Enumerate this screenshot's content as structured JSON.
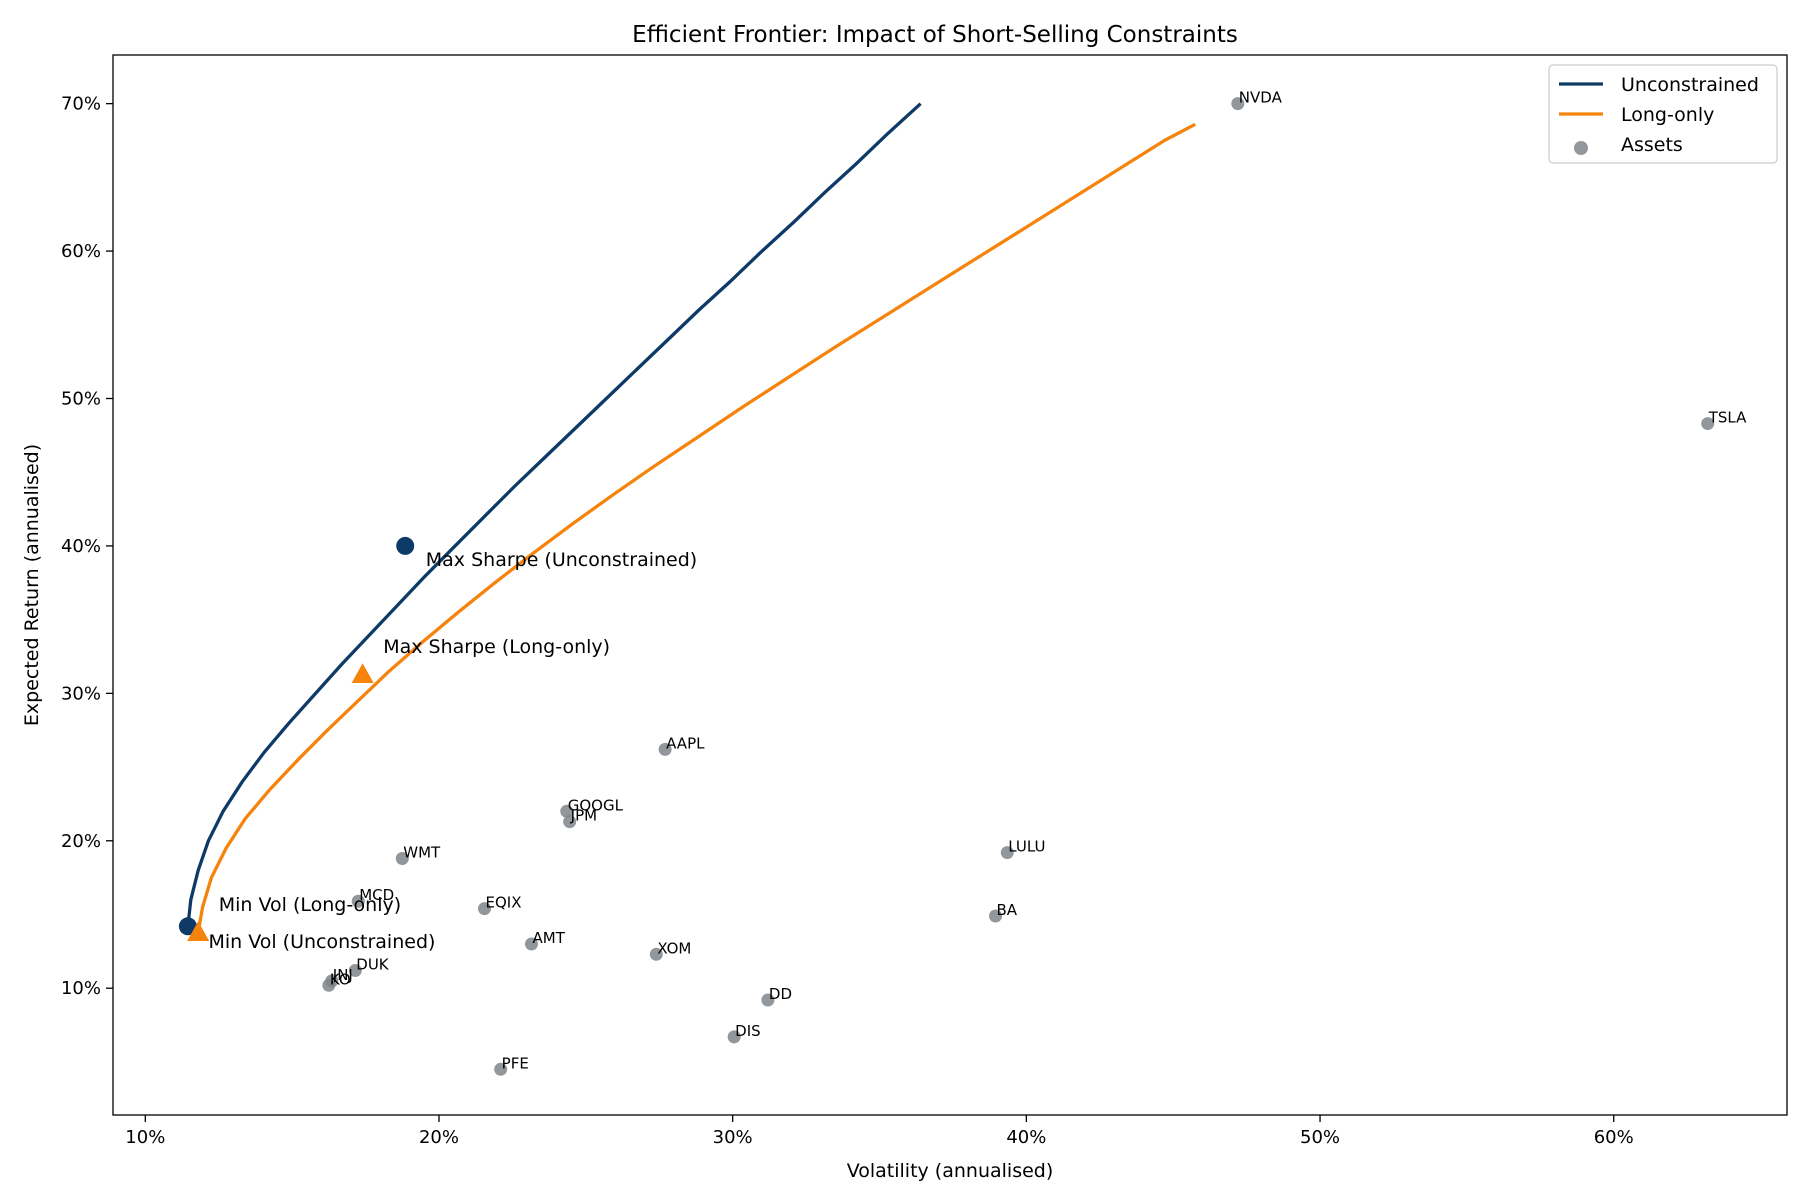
{
  "chart_data": {
    "type": "scatter",
    "title": "Efficient Frontier: Impact of Short-Selling Constraints",
    "xlabel": "Volatility (annualised)",
    "ylabel": "Expected Return (annualised)",
    "xlim": [
      0.089,
      0.659
    ],
    "ylim": [
      0.014,
      0.733
    ],
    "x_ticks": [
      0.1,
      0.2,
      0.3,
      0.4,
      0.5,
      0.6
    ],
    "x_tick_labels": [
      "10%",
      "20%",
      "30%",
      "40%",
      "50%",
      "60%"
    ],
    "y_ticks": [
      0.1,
      0.2,
      0.3,
      0.4,
      0.5,
      0.6,
      0.7
    ],
    "y_tick_labels": [
      "10%",
      "20%",
      "30%",
      "40%",
      "50%",
      "60%",
      "70%"
    ],
    "grid": false,
    "legend_position": "top-right",
    "legend": [
      {
        "label": "Unconstrained",
        "kind": "line",
        "color": "#0d3a66"
      },
      {
        "label": "Long-only",
        "kind": "line",
        "color": "#f5830c"
      },
      {
        "label": "Assets",
        "kind": "marker",
        "color": "#7f858b"
      }
    ],
    "series": [
      {
        "name": "Unconstrained",
        "color": "#0d3a66",
        "points": [
          [
            0.1145,
            0.142
          ],
          [
            0.1155,
            0.16
          ],
          [
            0.118,
            0.18
          ],
          [
            0.1215,
            0.2
          ],
          [
            0.1265,
            0.22
          ],
          [
            0.133,
            0.24
          ],
          [
            0.1405,
            0.26
          ],
          [
            0.149,
            0.28
          ],
          [
            0.158,
            0.3
          ],
          [
            0.167,
            0.32
          ],
          [
            0.1765,
            0.34
          ],
          [
            0.186,
            0.36
          ],
          [
            0.1955,
            0.38
          ],
          [
            0.2055,
            0.4
          ],
          [
            0.2155,
            0.42
          ],
          [
            0.2255,
            0.44
          ],
          [
            0.236,
            0.46
          ],
          [
            0.2465,
            0.48
          ],
          [
            0.257,
            0.5
          ],
          [
            0.2675,
            0.52
          ],
          [
            0.278,
            0.54
          ],
          [
            0.2885,
            0.56
          ],
          [
            0.2995,
            0.58
          ],
          [
            0.31,
            0.6
          ],
          [
            0.321,
            0.62
          ],
          [
            0.3315,
            0.64
          ],
          [
            0.3425,
            0.66
          ],
          [
            0.353,
            0.68
          ],
          [
            0.364,
            0.7
          ]
        ]
      },
      {
        "name": "Long-only",
        "color": "#f5830c",
        "points": [
          [
            0.118,
            0.138
          ],
          [
            0.1195,
            0.155
          ],
          [
            0.1225,
            0.175
          ],
          [
            0.1275,
            0.195
          ],
          [
            0.134,
            0.215
          ],
          [
            0.1425,
            0.235
          ],
          [
            0.152,
            0.255
          ],
          [
            0.162,
            0.275
          ],
          [
            0.1725,
            0.295
          ],
          [
            0.183,
            0.315
          ],
          [
            0.1945,
            0.335
          ],
          [
            0.2065,
            0.355
          ],
          [
            0.219,
            0.375
          ],
          [
            0.232,
            0.395
          ],
          [
            0.2455,
            0.415
          ],
          [
            0.2595,
            0.435
          ],
          [
            0.274,
            0.455
          ],
          [
            0.289,
            0.475
          ],
          [
            0.304,
            0.495
          ],
          [
            0.3195,
            0.515
          ],
          [
            0.335,
            0.535
          ],
          [
            0.351,
            0.555
          ],
          [
            0.367,
            0.575
          ],
          [
            0.383,
            0.595
          ],
          [
            0.399,
            0.615
          ],
          [
            0.415,
            0.635
          ],
          [
            0.431,
            0.655
          ],
          [
            0.447,
            0.675
          ],
          [
            0.4575,
            0.686
          ]
        ]
      }
    ],
    "special_points": [
      {
        "label": "Max Sharpe (Unconstrained)",
        "x": 0.1885,
        "y": 0.4,
        "marker": "circle",
        "color": "#0d3a66",
        "label_dx": 0.007,
        "label_dy": -0.009
      },
      {
        "label": "Max Sharpe (Long-only)",
        "x": 0.174,
        "y": 0.313,
        "marker": "triangle",
        "color": "#f5830c",
        "label_dx": 0.007,
        "label_dy": 0.019
      },
      {
        "label": "Min Vol (Unconstrained)",
        "x": 0.1145,
        "y": 0.142,
        "marker": "circle",
        "color": "#0d3a66",
        "label_dx": 0.007,
        "label_dy": -0.01
      },
      {
        "label": "Min Vol (Long-only)",
        "x": 0.118,
        "y": 0.138,
        "marker": "triangle",
        "color": "#f5830c",
        "label_dx": 0.007,
        "label_dy": 0.019
      }
    ],
    "assets": [
      {
        "name": "NVDA",
        "x": 0.472,
        "y": 0.7
      },
      {
        "name": "TSLA",
        "x": 0.632,
        "y": 0.483
      },
      {
        "name": "AAPL",
        "x": 0.277,
        "y": 0.262
      },
      {
        "name": "GOOGL",
        "x": 0.2435,
        "y": 0.22
      },
      {
        "name": "JPM",
        "x": 0.2445,
        "y": 0.213
      },
      {
        "name": "WMT",
        "x": 0.1875,
        "y": 0.188
      },
      {
        "name": "LULU",
        "x": 0.3935,
        "y": 0.192
      },
      {
        "name": "MCD",
        "x": 0.1725,
        "y": 0.159
      },
      {
        "name": "EQIX",
        "x": 0.2155,
        "y": 0.154
      },
      {
        "name": "BA",
        "x": 0.3895,
        "y": 0.149
      },
      {
        "name": "AMT",
        "x": 0.2315,
        "y": 0.13
      },
      {
        "name": "XOM",
        "x": 0.274,
        "y": 0.123
      },
      {
        "name": "DUK",
        "x": 0.1715,
        "y": 0.112
      },
      {
        "name": "JNJ",
        "x": 0.1635,
        "y": 0.105
      },
      {
        "name": "KO",
        "x": 0.1625,
        "y": 0.102
      },
      {
        "name": "DD",
        "x": 0.312,
        "y": 0.092
      },
      {
        "name": "DIS",
        "x": 0.3005,
        "y": 0.067
      },
      {
        "name": "PFE",
        "x": 0.221,
        "y": 0.045
      }
    ]
  }
}
